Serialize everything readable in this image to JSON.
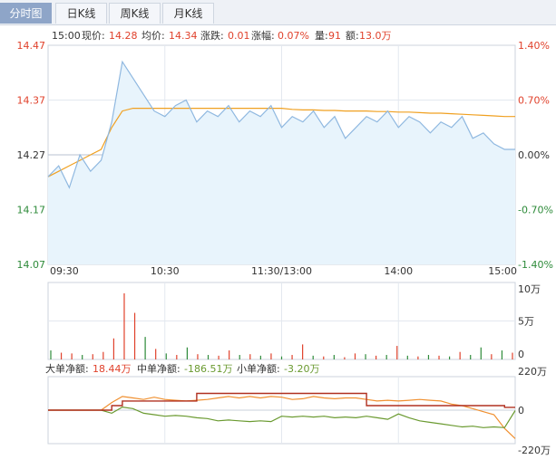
{
  "tabs": [
    "分时图",
    "日K线",
    "周K线",
    "月K线"
  ],
  "info": {
    "time": "15:00",
    "price_label": "现价:",
    "price": "14.28",
    "avg_label": "均价:",
    "avg": "14.34",
    "change_label": "涨跌:",
    "change": "0.01",
    "pct_label": "涨幅:",
    "pct": "0.07%",
    "vol_label": "量:",
    "vol": "91",
    "amount_label": "额:",
    "amount": "13.0万"
  },
  "axes": {
    "price_ticks": [
      "14.47",
      "14.37",
      "14.27",
      "14.17",
      "14.07"
    ],
    "pct_ticks": [
      "1.40%",
      "0.70%",
      "0.00%",
      "-0.70%",
      "-1.40%"
    ],
    "time_ticks": [
      "09:30",
      "10:30",
      "11:30/13:00",
      "14:00",
      "15:00"
    ],
    "vol_ticks": [
      "10万",
      "5万",
      "0"
    ],
    "flow_ticks": [
      "220万",
      "0",
      "-220万"
    ]
  },
  "flow_legend": {
    "large_label": "大单净额:",
    "large_value": "18.44万",
    "mid_label": "中单净额:",
    "mid_value": "-186.51万",
    "small_label": "小单净额:",
    "small_value": "-3.20万"
  },
  "colors": {
    "up": "#e0412b",
    "down": "#2e8b3a",
    "price_line": "#8fb8e0",
    "avg_line": "#f0a020",
    "large_line": "#b03020",
    "mid_line": "#f09030",
    "small_line": "#6a9a30"
  },
  "chart_data": [
    {
      "type": "line",
      "x_range": [
        "09:30",
        "15:00"
      ],
      "ylim": [
        14.07,
        14.47
      ],
      "y2lim": [
        "-1.40%",
        "1.40%"
      ],
      "series": [
        {
          "values": [
            14.23,
            14.25,
            14.21,
            14.27,
            14.24,
            14.26,
            14.33,
            14.44,
            14.41,
            14.38,
            14.35,
            14.34,
            14.36,
            14.37,
            14.33,
            14.35,
            14.34,
            14.36,
            14.33,
            14.35,
            14.34,
            14.36,
            14.32,
            14.34,
            14.33,
            14.35,
            14.32,
            14.34,
            14.3,
            14.32,
            14.34,
            14.33,
            14.35,
            14.32,
            14.34,
            14.33,
            14.31,
            14.33,
            14.32,
            14.34,
            14.3,
            14.31,
            14.29,
            14.28,
            14.28
          ]
        },
        {
          "values": [
            14.23,
            14.24,
            14.25,
            14.26,
            14.27,
            14.28,
            14.32,
            14.35,
            14.355,
            14.355,
            14.355,
            14.355,
            14.355,
            14.355,
            14.355,
            14.355,
            14.355,
            14.355,
            14.355,
            14.355,
            14.355,
            14.355,
            14.355,
            14.353,
            14.352,
            14.352,
            14.351,
            14.351,
            14.35,
            14.35,
            14.35,
            14.349,
            14.349,
            14.348,
            14.348,
            14.347,
            14.346,
            14.346,
            14.345,
            14.344,
            14.343,
            14.342,
            14.341,
            14.34,
            14.34
          ]
        }
      ]
    },
    {
      "type": "bar",
      "ylim": [
        0,
        100000
      ],
      "values": [
        12000,
        9000,
        8000,
        6000,
        7000,
        10000,
        28000,
        88000,
        62000,
        30000,
        14000,
        8000,
        6000,
        16000,
        7000,
        6000,
        5000,
        12000,
        6000,
        7000,
        5000,
        8000,
        4000,
        6000,
        20000,
        5000,
        4000,
        6000,
        3000,
        8000,
        7000,
        5000,
        6000,
        18000,
        5000,
        4000,
        6000,
        5000,
        4000,
        10000,
        6000,
        16000,
        7000,
        12000,
        9000
      ],
      "directions": [
        "down",
        "up",
        "up",
        "down",
        "up",
        "up",
        "up",
        "up",
        "up",
        "down",
        "up",
        "down",
        "up",
        "down",
        "up",
        "down",
        "up",
        "up",
        "down",
        "up",
        "down",
        "up",
        "down",
        "up",
        "up",
        "down",
        "up",
        "down",
        "up",
        "up",
        "down",
        "up",
        "down",
        "up",
        "down",
        "up",
        "down",
        "up",
        "down",
        "up",
        "down",
        "down",
        "up",
        "down",
        "up"
      ]
    },
    {
      "type": "line",
      "ylim": [
        -2200000,
        2200000
      ],
      "series": [
        {
          "name": "大单净额",
          "values": [
            0,
            0,
            0,
            0,
            0,
            0,
            300000,
            600000,
            600000,
            600000,
            600000,
            600000,
            600000,
            600000,
            1100000,
            1100000,
            1100000,
            1100000,
            1100000,
            1100000,
            1100000,
            1100000,
            1100000,
            1100000,
            1100000,
            1100000,
            1100000,
            1100000,
            1100000,
            1100000,
            300000,
            300000,
            300000,
            300000,
            300000,
            300000,
            300000,
            300000,
            300000,
            300000,
            300000,
            300000,
            300000,
            184400,
            184400
          ]
        },
        {
          "name": "中单净额",
          "values": [
            0,
            0,
            0,
            0,
            0,
            0,
            500000,
            900000,
            800000,
            700000,
            850000,
            700000,
            650000,
            600000,
            650000,
            700000,
            800000,
            900000,
            800000,
            900000,
            800000,
            900000,
            850000,
            700000,
            750000,
            900000,
            800000,
            750000,
            800000,
            800000,
            700000,
            600000,
            650000,
            600000,
            650000,
            700000,
            650000,
            600000,
            400000,
            300000,
            100000,
            -100000,
            -300000,
            -1200000,
            -1865100
          ]
        },
        {
          "name": "小单净额",
          "values": [
            0,
            0,
            0,
            0,
            0,
            0,
            -200000,
            200000,
            100000,
            -200000,
            -300000,
            -400000,
            -350000,
            -400000,
            -500000,
            -550000,
            -700000,
            -650000,
            -700000,
            -750000,
            -700000,
            -750000,
            -400000,
            -450000,
            -400000,
            -450000,
            -400000,
            -500000,
            -450000,
            -500000,
            -400000,
            -500000,
            -600000,
            -250000,
            -500000,
            -700000,
            -800000,
            -900000,
            -1000000,
            -1100000,
            -1050000,
            -1150000,
            -1100000,
            -1150000,
            -32000
          ]
        }
      ]
    }
  ]
}
